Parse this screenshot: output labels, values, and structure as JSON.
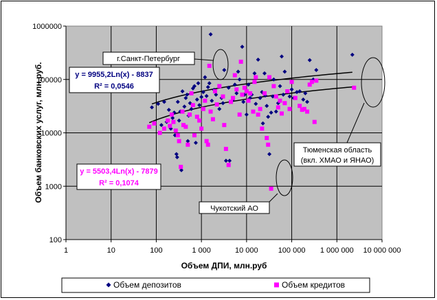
{
  "chart_data": {
    "type": "scatter",
    "x_scale": "log",
    "y_scale": "log",
    "xlim": [
      1,
      10000000
    ],
    "ylim": [
      100,
      1000000
    ],
    "xlabel": "Объем ДПИ, млн.руб",
    "ylabel": "Объем банковских услуг, млн.руб.",
    "x_tick_labels": [
      "1",
      "10",
      "100",
      "1 000",
      "10 000",
      "100 000",
      "1 000 000",
      "10 000 000"
    ],
    "y_tick_labels": [
      "100",
      "1000",
      "10000",
      "100000",
      "1000000"
    ],
    "grid": true,
    "plot_background": "#c0c0c0",
    "legend_position": "bottom",
    "series": [
      {
        "name": "Объем депозитов",
        "marker": "diamond",
        "color": "#000080",
        "points": [
          [
            80,
            30000
          ],
          [
            110,
            35000
          ],
          [
            130,
            14000
          ],
          [
            150,
            38000
          ],
          [
            170,
            16000
          ],
          [
            190,
            27000
          ],
          [
            210,
            12000
          ],
          [
            230,
            19000
          ],
          [
            250,
            24000
          ],
          [
            260,
            9000
          ],
          [
            280,
            4000
          ],
          [
            290,
            3500
          ],
          [
            300,
            38000
          ],
          [
            320,
            17000
          ],
          [
            340,
            25000
          ],
          [
            360,
            2000
          ],
          [
            380,
            60000
          ],
          [
            420,
            31000
          ],
          [
            450,
            45000
          ],
          [
            480,
            52000
          ],
          [
            500,
            7000
          ],
          [
            520,
            21000
          ],
          [
            560,
            36000
          ],
          [
            600,
            28000
          ],
          [
            650,
            68000
          ],
          [
            700,
            75000
          ],
          [
            750,
            6500
          ],
          [
            800,
            42000
          ],
          [
            850,
            85000
          ],
          [
            900,
            33000
          ],
          [
            1000,
            47000
          ],
          [
            1100,
            58000
          ],
          [
            1200,
            110000
          ],
          [
            1300,
            49000
          ],
          [
            1400,
            72000
          ],
          [
            1500,
            85000
          ],
          [
            1600,
            700000
          ],
          [
            1700,
            40000
          ],
          [
            1900,
            64000
          ],
          [
            2100,
            52000
          ],
          [
            2500,
            28000
          ],
          [
            2800,
            45000
          ],
          [
            3000,
            36000
          ],
          [
            3200,
            150000
          ],
          [
            3500,
            3000
          ],
          [
            4000,
            70000
          ],
          [
            4200,
            3000
          ],
          [
            5000,
            42000
          ],
          [
            5500,
            80000
          ],
          [
            6000,
            55000
          ],
          [
            6500,
            140000
          ],
          [
            7000,
            100000
          ],
          [
            8000,
            410000
          ],
          [
            8500,
            38000
          ],
          [
            9000,
            52000
          ],
          [
            10000,
            22000
          ],
          [
            11000,
            80000
          ],
          [
            12000,
            45000
          ],
          [
            13000,
            52000
          ],
          [
            15000,
            130000
          ],
          [
            16000,
            35000
          ],
          [
            18000,
            235000
          ],
          [
            20000,
            45000
          ],
          [
            22000,
            58000
          ],
          [
            23000,
            15000
          ],
          [
            25000,
            130000
          ],
          [
            26000,
            50000
          ],
          [
            28000,
            32000
          ],
          [
            30000,
            20000
          ],
          [
            32000,
            4000
          ],
          [
            35000,
            24000
          ],
          [
            38000,
            48000
          ],
          [
            40000,
            100000
          ],
          [
            45000,
            25000
          ],
          [
            50000,
            36000
          ],
          [
            55000,
            75000
          ],
          [
            60000,
            270000
          ],
          [
            65000,
            52000
          ],
          [
            70000,
            140000
          ],
          [
            80000,
            60000
          ],
          [
            90000,
            48000
          ],
          [
            100000,
            65000
          ],
          [
            110000,
            45000
          ],
          [
            130000,
            58000
          ],
          [
            150000,
            60000
          ],
          [
            180000,
            42000
          ],
          [
            200000,
            55000
          ],
          [
            220000,
            38000
          ],
          [
            250000,
            230000
          ],
          [
            300000,
            100000
          ],
          [
            350000,
            150000
          ],
          [
            2200000,
            290000
          ]
        ],
        "trendline": {
          "equation": "y = 9955,2Ln(x) - 8837",
          "r2": "R² = 0,0546",
          "a": 9955.2,
          "b": -8837
        }
      },
      {
        "name": "Объем кредитов",
        "marker": "square",
        "color": "#ff00ff",
        "points": [
          [
            70,
            13000
          ],
          [
            90,
            15000
          ],
          [
            120,
            10000
          ],
          [
            150,
            12000
          ],
          [
            180,
            17000
          ],
          [
            200,
            13500
          ],
          [
            220,
            22000
          ],
          [
            240,
            16000
          ],
          [
            270,
            11000
          ],
          [
            300,
            9000
          ],
          [
            320,
            7000
          ],
          [
            350,
            2300
          ],
          [
            380,
            25000
          ],
          [
            400,
            14000
          ],
          [
            450,
            13000
          ],
          [
            500,
            6000
          ],
          [
            550,
            22000
          ],
          [
            600,
            55000
          ],
          [
            650,
            33000
          ],
          [
            700,
            9000
          ],
          [
            800,
            20000
          ],
          [
            900,
            17000
          ],
          [
            1000,
            12000
          ],
          [
            1100,
            28000
          ],
          [
            1200,
            40000
          ],
          [
            1300,
            7000
          ],
          [
            1400,
            6000
          ],
          [
            1500,
            180000
          ],
          [
            1600,
            25000
          ],
          [
            1800,
            18000
          ],
          [
            2000,
            60000
          ],
          [
            2200,
            34000
          ],
          [
            2500,
            75000
          ],
          [
            3000,
            48000
          ],
          [
            3200,
            14000
          ],
          [
            3500,
            5000
          ],
          [
            4000,
            2500
          ],
          [
            4500,
            38000
          ],
          [
            5000,
            45000
          ],
          [
            5500,
            120000
          ],
          [
            6000,
            65000
          ],
          [
            7000,
            22000
          ],
          [
            7500,
            215000
          ],
          [
            8000,
            52000
          ],
          [
            9000,
            70000
          ],
          [
            10000,
            60000
          ],
          [
            11000,
            40000
          ],
          [
            12000,
            55000
          ],
          [
            14000,
            25000
          ],
          [
            15000,
            90000
          ],
          [
            16000,
            110000
          ],
          [
            18000,
            22000
          ],
          [
            20000,
            28000
          ],
          [
            22000,
            12000
          ],
          [
            25000,
            55000
          ],
          [
            28000,
            8000
          ],
          [
            30000,
            6000
          ],
          [
            32000,
            110000
          ],
          [
            35000,
            900
          ],
          [
            40000,
            75000
          ],
          [
            45000,
            48000
          ],
          [
            50000,
            30000
          ],
          [
            55000,
            40000
          ],
          [
            60000,
            23000
          ],
          [
            70000,
            36000
          ],
          [
            80000,
            60000
          ],
          [
            90000,
            28000
          ],
          [
            100000,
            90000
          ],
          [
            120000,
            45000
          ],
          [
            150000,
            32000
          ],
          [
            170000,
            27000
          ],
          [
            190000,
            28000
          ],
          [
            220000,
            25000
          ],
          [
            250000,
            80000
          ],
          [
            280000,
            90000
          ],
          [
            320000,
            16000
          ],
          [
            350000,
            95000
          ],
          [
            2400000,
            70000
          ]
        ],
        "trendline": {
          "equation": "y = 5503,4Ln(x) - 7879",
          "r2": "R² = 0,1074",
          "a": 5503.4,
          "b": -7879
        }
      }
    ],
    "annotations": [
      {
        "text": "г.Санкт-Петербург",
        "target": [
          1500,
          150000
        ]
      },
      {
        "text_lines": [
          "Тюменская область",
          "(вкл. ХМАО и ЯНАО)"
        ],
        "target": [
          2300000,
          90000
        ]
      },
      {
        "text": "Чукотский АО",
        "target": [
          35000,
          1500
        ]
      }
    ]
  }
}
